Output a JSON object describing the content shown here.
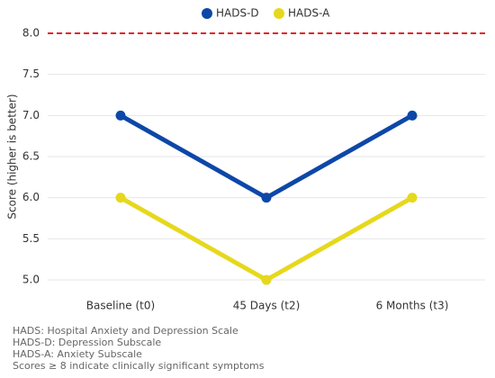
{
  "chart_data": {
    "type": "line",
    "y_label": "Score (higher is better)",
    "categories": [
      "Baseline (t0)",
      "45 Days (t2)",
      "6 Months (t3)"
    ],
    "series": [
      {
        "name": "HADS-D",
        "color": "#0d47a8",
        "values": [
          7,
          6,
          7
        ]
      },
      {
        "name": "HADS-A",
        "color": "#e6d81c",
        "values": [
          6,
          5,
          6
        ]
      }
    ],
    "ylim": [
      5,
      8
    ],
    "yticks": [
      {
        "value": 5,
        "label": "5.0"
      },
      {
        "value": 5.5,
        "label": "5.5"
      },
      {
        "value": 6,
        "label": "6.0"
      },
      {
        "value": 6.5,
        "label": "6.5"
      },
      {
        "value": 7,
        "label": "7.0"
      },
      {
        "value": 7.5,
        "label": "7.5"
      },
      {
        "value": 8,
        "label": "8.0"
      }
    ],
    "grid": true,
    "reference_line": {
      "value": 8,
      "color": "#e0262a"
    },
    "notes": [
      "HADS: Hospital Anxiety and Depression Scale",
      "HADS-D: Depression Subscale",
      "HADS-A: Anxiety Subscale",
      "Scores ≥ 8 indicate clinically significant symptoms"
    ]
  }
}
